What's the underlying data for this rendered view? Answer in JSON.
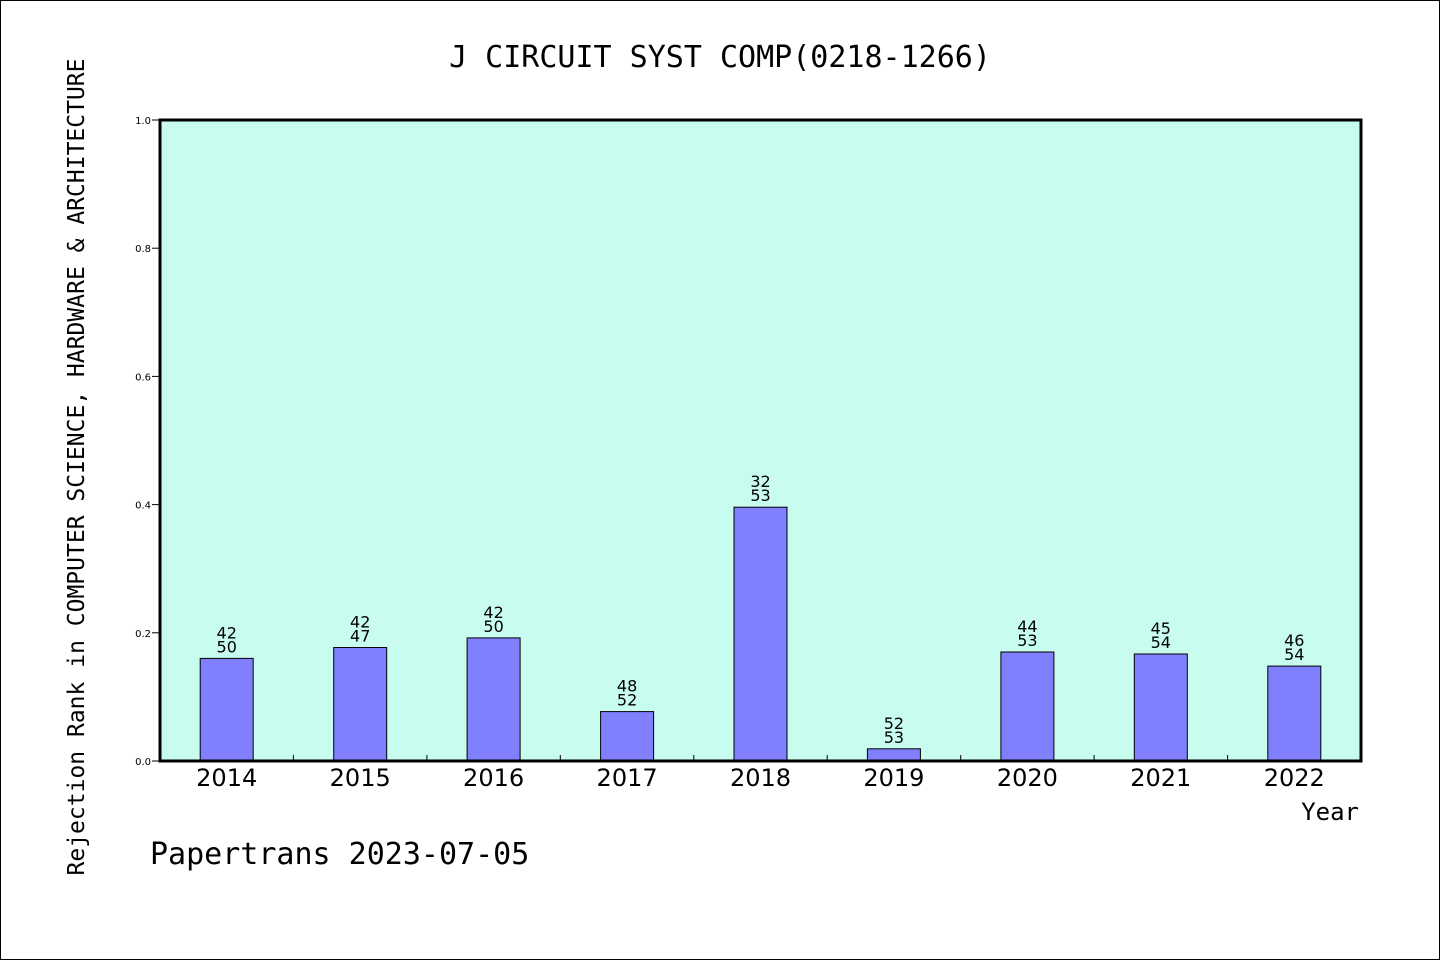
{
  "chart_data": {
    "type": "bar",
    "title": "J CIRCUIT SYST COMP(0218-1266)",
    "xlabel": "Year",
    "ylabel": "Rejection Rank in COMPUTER SCIENCE, HARDWARE & ARCHITECTURE",
    "categories": [
      "2014",
      "2015",
      "2016",
      "2017",
      "2018",
      "2019",
      "2020",
      "2021",
      "2022"
    ],
    "values": [
      0.16,
      0.177,
      0.192,
      0.077,
      0.396,
      0.019,
      0.17,
      0.167,
      0.148
    ],
    "bar_labels_top": [
      "42",
      "42",
      "42",
      "48",
      "32",
      "52",
      "44",
      "45",
      "46"
    ],
    "bar_labels_bottom": [
      "50",
      "47",
      "50",
      "52",
      "53",
      "53",
      "53",
      "54",
      "54"
    ],
    "ylim": [
      0,
      1.0
    ],
    "yticks": [
      "0.0",
      "0.2",
      "0.4",
      "0.6",
      "0.8",
      "1.0"
    ],
    "grid": false,
    "plot_background": "#c8fcee",
    "bar_color": "#8080ff",
    "footer": "Papertrans 2023-07-05"
  }
}
